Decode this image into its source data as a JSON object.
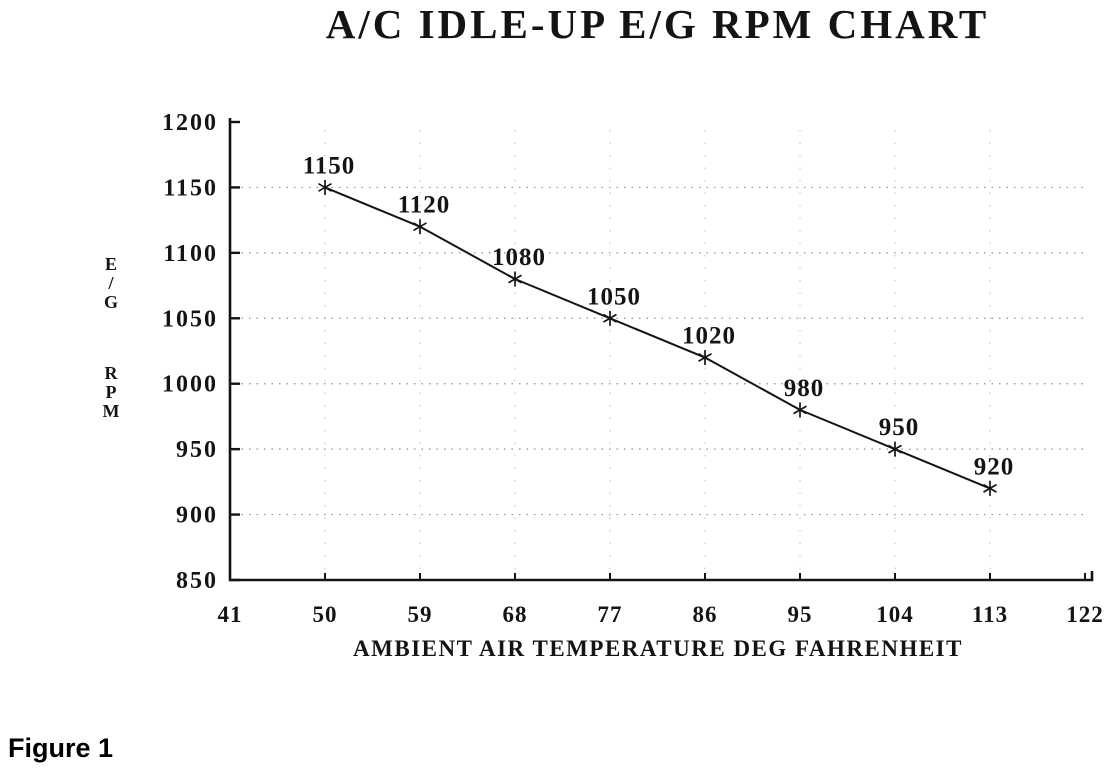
{
  "figure": {
    "caption": "Figure 1"
  },
  "chart_data": {
    "type": "line",
    "title": "A/C IDLE-UP E/G RPM CHART",
    "xlabel": "AMBIENT AIR TEMPERATURE DEG FAHRENHEIT",
    "ylabel": "E/G RPM",
    "ylabel_top": [
      "E",
      "/",
      "G"
    ],
    "ylabel_bottom": [
      "R",
      "P",
      "M"
    ],
    "x": [
      50,
      59,
      68,
      77,
      86,
      95,
      104,
      113
    ],
    "y": [
      1150,
      1120,
      1080,
      1050,
      1020,
      980,
      950,
      920
    ],
    "point_labels": [
      "1150",
      "1120",
      "1080",
      "1050",
      "1020",
      "980",
      "950",
      "920"
    ],
    "x_ticks": [
      41,
      50,
      59,
      68,
      77,
      86,
      95,
      104,
      113,
      122
    ],
    "y_ticks": [
      850,
      900,
      950,
      1000,
      1050,
      1100,
      1150,
      1200
    ],
    "xlim": [
      41,
      122
    ],
    "ylim": [
      850,
      1200
    ],
    "grid": "dotted-horizontal-and-faint-vertical",
    "legend": "none",
    "marker": "asterisk",
    "line_width": 2,
    "colors": {
      "ink": "#141414",
      "grid": "#8f8f8f",
      "grid_faint": "#bdbdbd",
      "background": "#ffffff"
    }
  }
}
